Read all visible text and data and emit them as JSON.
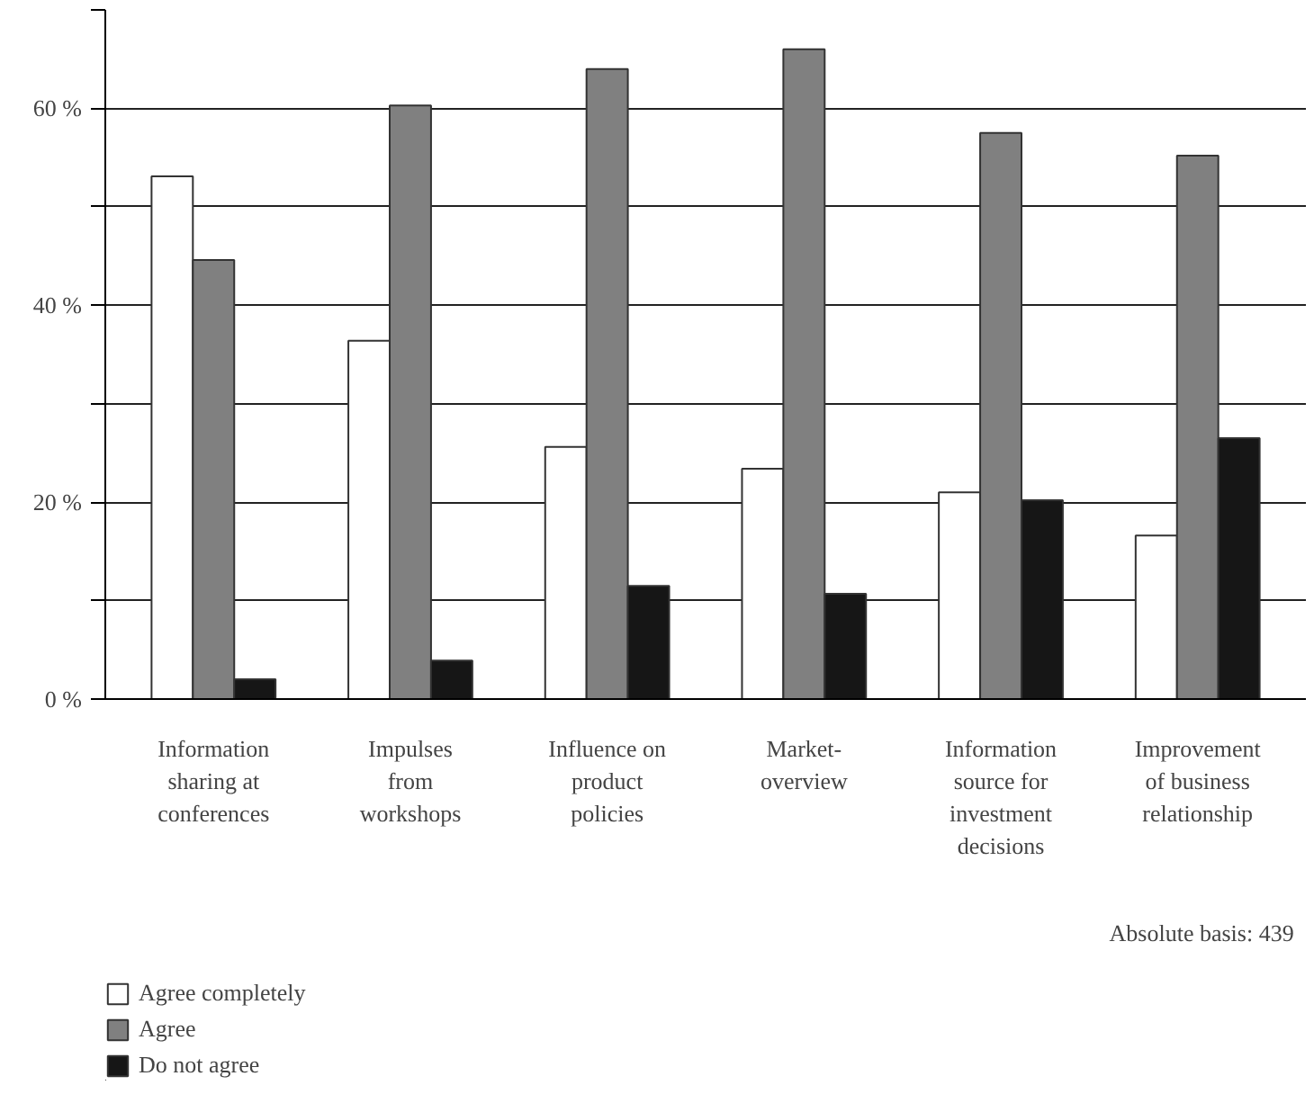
{
  "chart_data": {
    "type": "bar",
    "categories": [
      "Information\nsharing at\nconferences",
      "Impulses\nfrom\nworkshops",
      "Influence on\nproduct\npolicies",
      "Market-\noverview",
      "Information\nsource for\ninvestment\ndecisions",
      "Improvement\nof business\nrelationship"
    ],
    "series": [
      {
        "name": "Agree completely",
        "color": "#ffffff",
        "values": [
          53.1,
          36.4,
          25.6,
          23.4,
          21.0,
          16.6
        ]
      },
      {
        "name": "Agree",
        "color": "#808080",
        "values": [
          44.6,
          60.3,
          64.0,
          66.0,
          57.5,
          55.2
        ]
      },
      {
        "name": "Do not agree",
        "color": "#161616",
        "values": [
          2.0,
          3.9,
          11.5,
          10.7,
          20.2,
          26.5
        ]
      }
    ],
    "ylim": [
      0,
      70
    ],
    "yticks": [
      {
        "value": 0,
        "label": "0 %"
      },
      {
        "value": 10,
        "label": null
      },
      {
        "value": 20,
        "label": "20 %"
      },
      {
        "value": 30,
        "label": null
      },
      {
        "value": 40,
        "label": "40 %"
      },
      {
        "value": 50,
        "label": null
      },
      {
        "value": 60,
        "label": "60 %"
      },
      {
        "value": 70,
        "label": null
      }
    ],
    "grid": "y",
    "legend": "bottom left",
    "annotations": [
      "Absolute basis: 439"
    ]
  }
}
